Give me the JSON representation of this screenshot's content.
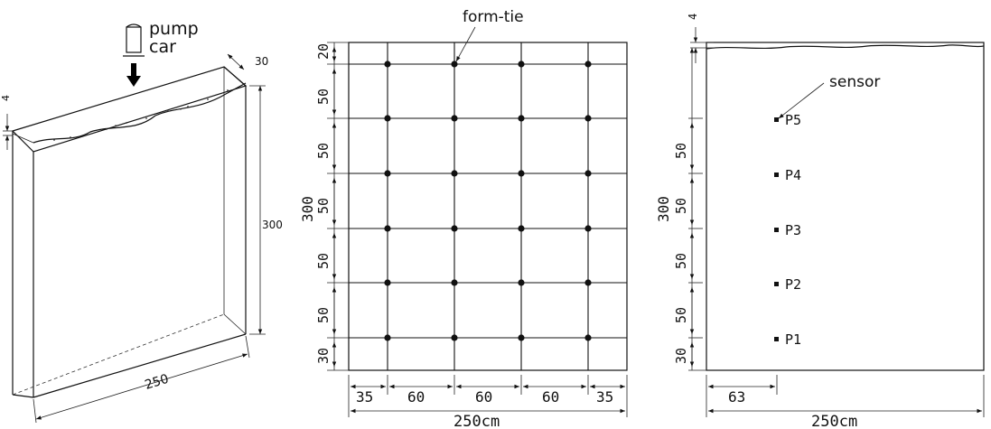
{
  "panel_a": {
    "pump_line1": "pump",
    "pump_line2": "car",
    "depth_label": "30",
    "gap_label": "4",
    "height_label": "300",
    "width_label": "250"
  },
  "panel_b": {
    "callout": "form-tie",
    "height_label": "300",
    "v_segments": [
      "20",
      "50",
      "50",
      "50",
      "50",
      "50",
      "30"
    ],
    "h_segments": [
      "35",
      "60",
      "60",
      "60",
      "35"
    ],
    "total_label": "250cm"
  },
  "panel_c": {
    "top_label": "4",
    "callout": "sensor",
    "height_label": "300",
    "v_segments": [
      "50",
      "50",
      "50",
      "50",
      "30"
    ],
    "sensors": [
      "P5",
      "P4",
      "P3",
      "P2",
      "P1"
    ],
    "offset_label": "63",
    "total_label": "250cm"
  }
}
